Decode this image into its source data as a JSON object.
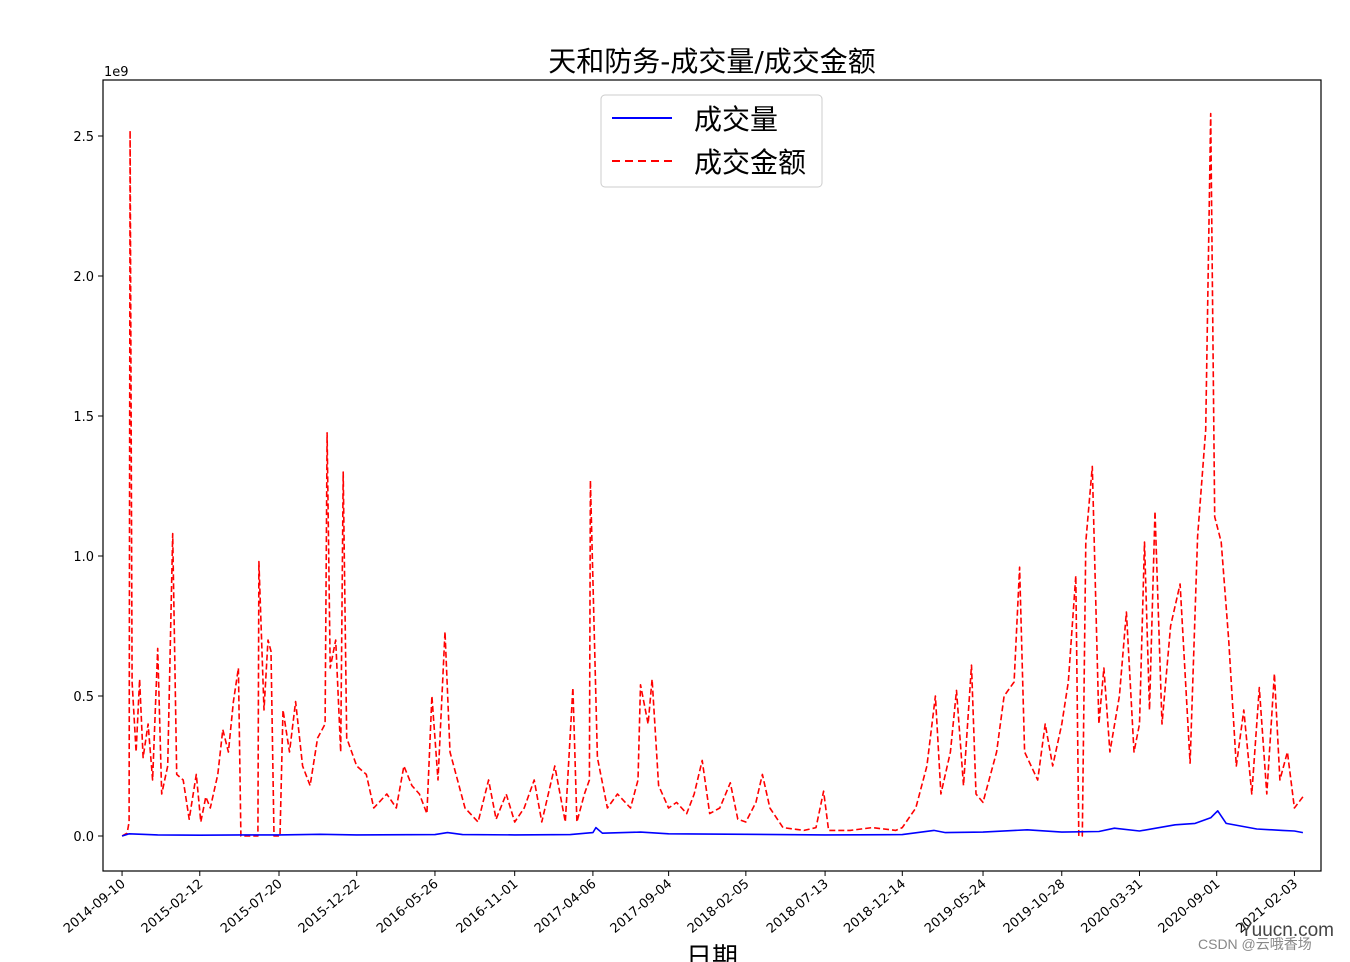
{
  "chart_data": {
    "type": "line",
    "title": "天和防务-成交量/成交金额",
    "xlabel": "日期",
    "ylabel": "",
    "y_offset_label": "1e9",
    "ylim": [
      -0.125,
      2.7
    ],
    "xlim": [
      "2014-08-03",
      "2021-03-28"
    ],
    "yticks": [
      0.0,
      0.5,
      1.0,
      1.5,
      2.0,
      2.5
    ],
    "ytick_labels": [
      "0.0",
      "0.5",
      "1.0",
      "1.5",
      "2.0",
      "2.5"
    ],
    "xtick_labels": [
      "2014-09-10",
      "2015-02-12",
      "2015-07-20",
      "2015-12-22",
      "2016-05-26",
      "2016-11-01",
      "2017-04-06",
      "2017-09-04",
      "2018-02-05",
      "2018-07-13",
      "2018-12-14",
      "2019-05-24",
      "2019-10-28",
      "2020-03-31",
      "2020-09-01",
      "2021-02-03"
    ],
    "legend_position": "upper-center",
    "grid": false,
    "series": [
      {
        "name": "成交量",
        "color": "#0000ff",
        "style": "solid",
        "points": [
          [
            "2014-09-10",
            0.0
          ],
          [
            "2014-09-24",
            0.008
          ],
          [
            "2014-10-20",
            0.006
          ],
          [
            "2014-11-20",
            0.004
          ],
          [
            "2015-02-12",
            0.003
          ],
          [
            "2015-05-10",
            0.004
          ],
          [
            "2015-07-20",
            0.004
          ],
          [
            "2015-10-10",
            0.006
          ],
          [
            "2015-12-22",
            0.004
          ],
          [
            "2016-05-26",
            0.005
          ],
          [
            "2016-06-20",
            0.012
          ],
          [
            "2016-07-20",
            0.005
          ],
          [
            "2016-11-01",
            0.004
          ],
          [
            "2017-02-20",
            0.005
          ],
          [
            "2017-04-06",
            0.012
          ],
          [
            "2017-04-12",
            0.03
          ],
          [
            "2017-04-25",
            0.01
          ],
          [
            "2017-07-10",
            0.014
          ],
          [
            "2017-09-04",
            0.008
          ],
          [
            "2018-02-05",
            0.006
          ],
          [
            "2018-07-13",
            0.004
          ],
          [
            "2018-12-14",
            0.005
          ],
          [
            "2019-02-15",
            0.02
          ],
          [
            "2019-03-10",
            0.012
          ],
          [
            "2019-05-24",
            0.014
          ],
          [
            "2019-08-20",
            0.022
          ],
          [
            "2019-10-28",
            0.014
          ],
          [
            "2020-01-10",
            0.016
          ],
          [
            "2020-02-10",
            0.028
          ],
          [
            "2020-03-31",
            0.018
          ],
          [
            "2020-06-10",
            0.04
          ],
          [
            "2020-07-20",
            0.045
          ],
          [
            "2020-08-20",
            0.065
          ],
          [
            "2020-09-03",
            0.09
          ],
          [
            "2020-09-20",
            0.045
          ],
          [
            "2020-11-20",
            0.025
          ],
          [
            "2021-01-10",
            0.02
          ],
          [
            "2021-02-03",
            0.018
          ],
          [
            "2021-02-20",
            0.012
          ]
        ]
      },
      {
        "name": "成交金额",
        "color": "#ff0000",
        "style": "dashed",
        "points": [
          [
            "2014-09-10",
            0.0
          ],
          [
            "2014-09-20",
            0.01
          ],
          [
            "2014-09-24",
            0.05
          ],
          [
            "2014-09-26",
            2.52
          ],
          [
            "2014-09-30",
            0.55
          ],
          [
            "2014-10-08",
            0.3
          ],
          [
            "2014-10-15",
            0.56
          ],
          [
            "2014-10-22",
            0.28
          ],
          [
            "2014-11-01",
            0.4
          ],
          [
            "2014-11-10",
            0.2
          ],
          [
            "2014-11-20",
            0.67
          ],
          [
            "2014-11-28",
            0.15
          ],
          [
            "2014-12-10",
            0.25
          ],
          [
            "2014-12-20",
            1.08
          ],
          [
            "2014-12-28",
            0.22
          ],
          [
            "2015-01-10",
            0.2
          ],
          [
            "2015-01-22",
            0.06
          ],
          [
            "2015-02-05",
            0.22
          ],
          [
            "2015-02-14",
            0.05
          ],
          [
            "2015-02-24",
            0.14
          ],
          [
            "2015-03-05",
            0.1
          ],
          [
            "2015-03-20",
            0.22
          ],
          [
            "2015-03-30",
            0.38
          ],
          [
            "2015-04-10",
            0.3
          ],
          [
            "2015-04-20",
            0.48
          ],
          [
            "2015-04-30",
            0.6
          ],
          [
            "2015-05-05",
            0.0
          ],
          [
            "2015-06-08",
            0.0
          ],
          [
            "2015-06-10",
            0.98
          ],
          [
            "2015-06-20",
            0.45
          ],
          [
            "2015-06-28",
            0.7
          ],
          [
            "2015-07-04",
            0.66
          ],
          [
            "2015-07-10",
            0.0
          ],
          [
            "2015-07-22",
            0.0
          ],
          [
            "2015-07-28",
            0.45
          ],
          [
            "2015-08-10",
            0.3
          ],
          [
            "2015-08-22",
            0.48
          ],
          [
            "2015-09-05",
            0.25
          ],
          [
            "2015-09-20",
            0.18
          ],
          [
            "2015-10-05",
            0.35
          ],
          [
            "2015-10-20",
            0.4
          ],
          [
            "2015-10-24",
            1.44
          ],
          [
            "2015-10-30",
            0.6
          ],
          [
            "2015-11-10",
            0.7
          ],
          [
            "2015-11-20",
            0.3
          ],
          [
            "2015-11-25",
            1.3
          ],
          [
            "2015-12-02",
            0.35
          ],
          [
            "2015-12-22",
            0.25
          ],
          [
            "2016-01-10",
            0.22
          ],
          [
            "2016-01-25",
            0.1
          ],
          [
            "2016-02-20",
            0.15
          ],
          [
            "2016-03-10",
            0.1
          ],
          [
            "2016-03-25",
            0.25
          ],
          [
            "2016-04-10",
            0.18
          ],
          [
            "2016-04-25",
            0.15
          ],
          [
            "2016-05-10",
            0.08
          ],
          [
            "2016-05-20",
            0.5
          ],
          [
            "2016-06-01",
            0.2
          ],
          [
            "2016-06-15",
            0.73
          ],
          [
            "2016-06-25",
            0.3
          ],
          [
            "2016-07-10",
            0.2
          ],
          [
            "2016-07-25",
            0.1
          ],
          [
            "2016-08-20",
            0.05
          ],
          [
            "2016-09-10",
            0.2
          ],
          [
            "2016-09-25",
            0.06
          ],
          [
            "2016-10-15",
            0.15
          ],
          [
            "2016-11-01",
            0.05
          ],
          [
            "2016-11-20",
            0.1
          ],
          [
            "2016-12-10",
            0.2
          ],
          [
            "2016-12-25",
            0.05
          ],
          [
            "2017-01-20",
            0.25
          ],
          [
            "2017-02-10",
            0.05
          ],
          [
            "2017-02-25",
            0.53
          ],
          [
            "2017-03-05",
            0.05
          ],
          [
            "2017-03-20",
            0.15
          ],
          [
            "2017-03-30",
            0.2
          ],
          [
            "2017-04-01",
            1.27
          ],
          [
            "2017-04-15",
            0.28
          ],
          [
            "2017-05-05",
            0.1
          ],
          [
            "2017-05-25",
            0.15
          ],
          [
            "2017-06-20",
            0.1
          ],
          [
            "2017-07-05",
            0.2
          ],
          [
            "2017-07-10",
            0.54
          ],
          [
            "2017-07-25",
            0.4
          ],
          [
            "2017-08-02",
            0.56
          ],
          [
            "2017-08-15",
            0.18
          ],
          [
            "2017-09-04",
            0.1
          ],
          [
            "2017-09-20",
            0.12
          ],
          [
            "2017-10-10",
            0.08
          ],
          [
            "2017-10-25",
            0.15
          ],
          [
            "2017-11-10",
            0.27
          ],
          [
            "2017-11-25",
            0.08
          ],
          [
            "2017-12-15",
            0.1
          ],
          [
            "2018-01-05",
            0.19
          ],
          [
            "2018-01-20",
            0.06
          ],
          [
            "2018-02-05",
            0.05
          ],
          [
            "2018-02-25",
            0.12
          ],
          [
            "2018-03-10",
            0.22
          ],
          [
            "2018-03-25",
            0.1
          ],
          [
            "2018-04-20",
            0.03
          ],
          [
            "2018-06-01",
            0.02
          ],
          [
            "2018-06-25",
            0.03
          ],
          [
            "2018-07-10",
            0.16
          ],
          [
            "2018-07-20",
            0.02
          ],
          [
            "2018-09-01",
            0.02
          ],
          [
            "2018-10-15",
            0.03
          ],
          [
            "2018-12-01",
            0.02
          ],
          [
            "2018-12-14",
            0.03
          ],
          [
            "2019-01-10",
            0.1
          ],
          [
            "2019-02-01",
            0.25
          ],
          [
            "2019-02-18",
            0.5
          ],
          [
            "2019-03-01",
            0.15
          ],
          [
            "2019-03-20",
            0.3
          ],
          [
            "2019-04-01",
            0.52
          ],
          [
            "2019-04-15",
            0.18
          ],
          [
            "2019-05-01",
            0.61
          ],
          [
            "2019-05-10",
            0.15
          ],
          [
            "2019-05-24",
            0.12
          ],
          [
            "2019-06-20",
            0.3
          ],
          [
            "2019-07-05",
            0.5
          ],
          [
            "2019-07-25",
            0.55
          ],
          [
            "2019-08-05",
            0.96
          ],
          [
            "2019-08-15",
            0.3
          ],
          [
            "2019-09-10",
            0.2
          ],
          [
            "2019-09-25",
            0.4
          ],
          [
            "2019-10-10",
            0.25
          ],
          [
            "2019-10-28",
            0.4
          ],
          [
            "2019-11-10",
            0.55
          ],
          [
            "2019-11-25",
            0.93
          ],
          [
            "2019-12-01",
            0.0
          ],
          [
            "2019-12-08",
            0.0
          ],
          [
            "2019-12-15",
            1.05
          ],
          [
            "2019-12-28",
            1.32
          ],
          [
            "2020-01-10",
            0.4
          ],
          [
            "2020-01-20",
            0.6
          ],
          [
            "2020-02-01",
            0.3
          ],
          [
            "2020-02-20",
            0.5
          ],
          [
            "2020-03-05",
            0.8
          ],
          [
            "2020-03-20",
            0.3
          ],
          [
            "2020-03-31",
            0.4
          ],
          [
            "2020-04-10",
            1.05
          ],
          [
            "2020-04-20",
            0.45
          ],
          [
            "2020-05-01",
            1.16
          ],
          [
            "2020-05-15",
            0.4
          ],
          [
            "2020-06-01",
            0.75
          ],
          [
            "2020-06-20",
            0.9
          ],
          [
            "2020-07-10",
            0.26
          ],
          [
            "2020-07-25",
            1.07
          ],
          [
            "2020-08-10",
            1.45
          ],
          [
            "2020-08-20",
            2.58
          ],
          [
            "2020-08-28",
            1.14
          ],
          [
            "2020-09-10",
            1.05
          ],
          [
            "2020-09-25",
            0.7
          ],
          [
            "2020-10-10",
            0.25
          ],
          [
            "2020-10-25",
            0.45
          ],
          [
            "2020-11-10",
            0.15
          ],
          [
            "2020-11-25",
            0.53
          ],
          [
            "2020-12-10",
            0.15
          ],
          [
            "2020-12-25",
            0.58
          ],
          [
            "2021-01-05",
            0.2
          ],
          [
            "2021-01-20",
            0.3
          ],
          [
            "2021-02-03",
            0.1
          ],
          [
            "2021-02-20",
            0.14
          ]
        ]
      }
    ]
  },
  "watermark": {
    "text": "CSDN @云哦香场",
    "site": "Yuucn.com"
  }
}
